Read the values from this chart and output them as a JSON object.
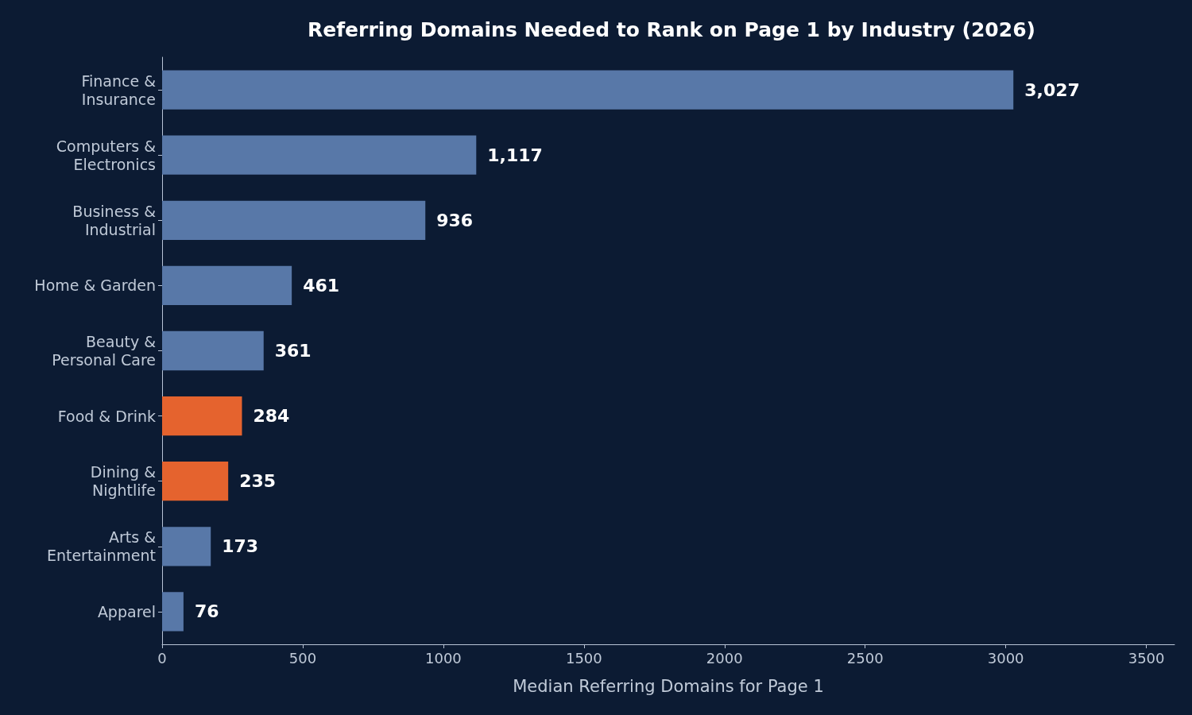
{
  "chart_data": {
    "type": "bar",
    "orientation": "horizontal",
    "title": "Referring Domains Needed to Rank on Page 1 by Industry (2026)",
    "xlabel": "Median Referring Domains for Page 1",
    "categories": [
      "Finance &\nInsurance",
      "Computers &\nElectronics",
      "Business &\nIndustrial",
      "Home & Garden",
      "Beauty &\nPersonal Care",
      "Food & Drink",
      "Dining &\nNightlife",
      "Arts &\nEntertainment",
      "Apparel"
    ],
    "values": [
      3027,
      1117,
      936,
      461,
      361,
      284,
      235,
      173,
      76
    ],
    "colors": [
      "#5878a8",
      "#5878a8",
      "#5878a8",
      "#5878a8",
      "#5878a8",
      "#e5632e",
      "#e5632e",
      "#5878a8",
      "#5878a8"
    ],
    "value_labels": [
      "3,027",
      "1,117",
      "936",
      "461",
      "361",
      "284",
      "235",
      "173",
      "76"
    ],
    "xlim": [
      0,
      3600
    ],
    "xticks": [
      0,
      500,
      1000,
      1500,
      2000,
      2500,
      3000,
      3500
    ],
    "grid": false
  }
}
